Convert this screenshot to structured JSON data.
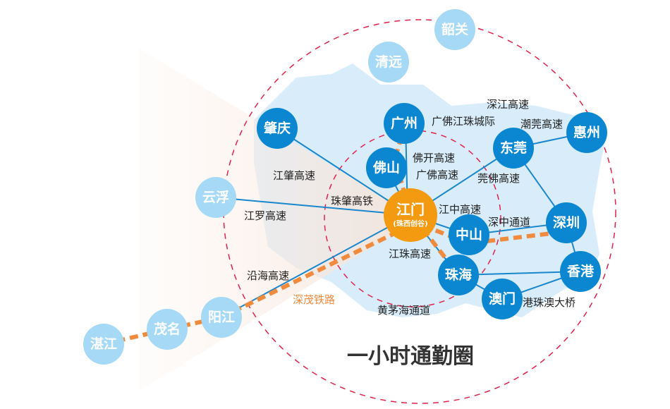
{
  "title": "一小时通勤圈",
  "colors": {
    "dark_node": "#0b87d1",
    "light_node": "#a5d9f5",
    "hub": "#f39a10",
    "rail": "#f08a3c",
    "road": "#1a86cc",
    "ring": "#e0224a",
    "land": "#d8ecf9"
  },
  "hub": {
    "name": "江门",
    "sub": "(珠西创谷)"
  },
  "cities": [
    {
      "id": "shaoguan",
      "name": "韶关",
      "tier": "light"
    },
    {
      "id": "qingyuan",
      "name": "清远",
      "tier": "light"
    },
    {
      "id": "zhaoqing",
      "name": "肇庆",
      "tier": "dark"
    },
    {
      "id": "guangzhou",
      "name": "广州",
      "tier": "dark"
    },
    {
      "id": "foshan",
      "name": "佛山",
      "tier": "dark"
    },
    {
      "id": "dongguan",
      "name": "东莞",
      "tier": "dark"
    },
    {
      "id": "huizhou",
      "name": "惠州",
      "tier": "dark"
    },
    {
      "id": "yunfu",
      "name": "云浮",
      "tier": "light"
    },
    {
      "id": "zhongshan",
      "name": "中山",
      "tier": "dark"
    },
    {
      "id": "shenzhen",
      "name": "深圳",
      "tier": "dark"
    },
    {
      "id": "zhuhai",
      "name": "珠海",
      "tier": "dark"
    },
    {
      "id": "hongkong",
      "name": "香港",
      "tier": "dark"
    },
    {
      "id": "macau",
      "name": "澳门",
      "tier": "dark"
    },
    {
      "id": "yangjiang",
      "name": "阳江",
      "tier": "light"
    },
    {
      "id": "maoming",
      "name": "茂名",
      "tier": "light"
    },
    {
      "id": "zhanjiang",
      "name": "湛江",
      "tier": "light"
    }
  ],
  "routes": {
    "shenjiang": "深江高速",
    "gfjz": "广佛江珠城际",
    "chaoguan": "潮莞高速",
    "fokai": "佛开高速",
    "guangfo": "广佛高速",
    "guanfo": "莞佛高速",
    "jiangzhao": "江肇高速",
    "zhuzhao_rail": "珠肇高铁",
    "jiangluo": "江罗高速",
    "jiangzhong": "江中高速",
    "shenzhong": "深中通道",
    "jiangzhu": "江珠高速",
    "yanhai": "沿海高速",
    "shenmao_rail": "深茂铁路",
    "huangmaohai": "黄茅海通道",
    "hzmb": "港珠澳大桥"
  }
}
